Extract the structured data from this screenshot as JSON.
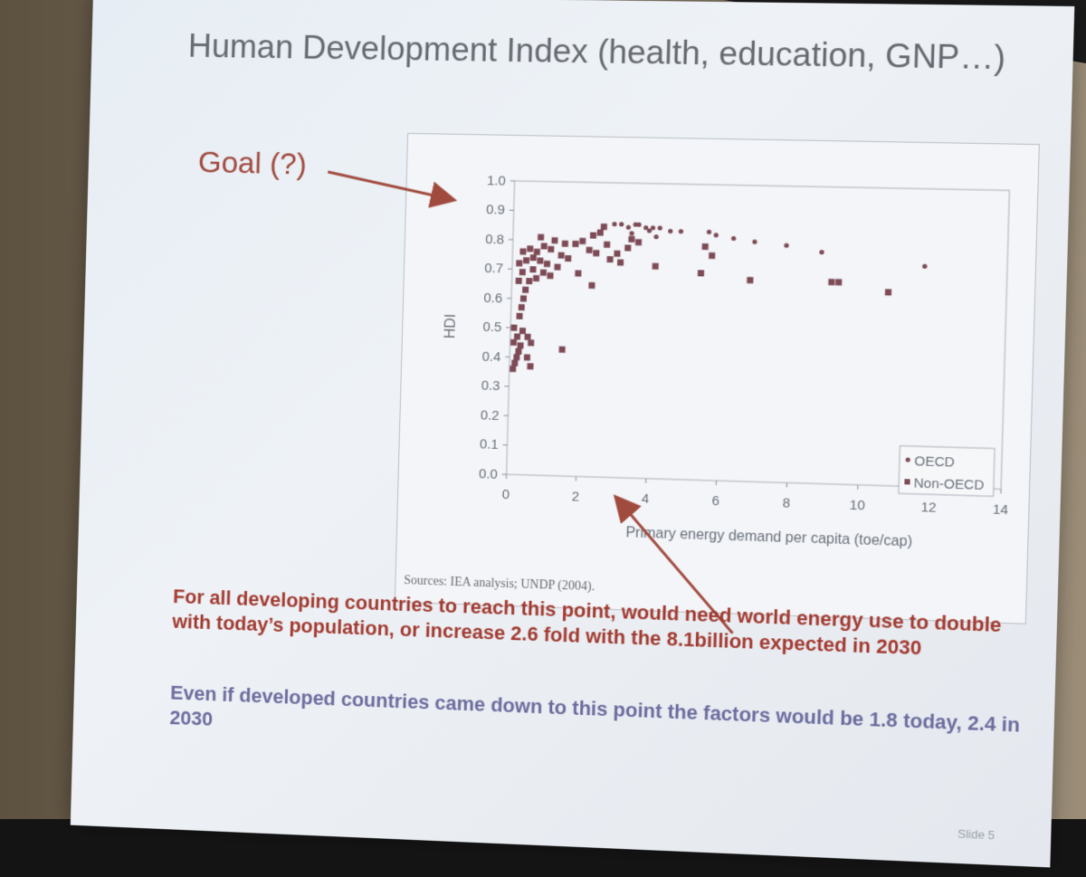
{
  "slide": {
    "title": "Human Development Index (health, education, GNP…)",
    "goal_label": "Goal (?)",
    "source_note": "Sources: IEA analysis; UNDP (2004).",
    "red_text": "For all developing countries to reach this point, would need world energy use to double with today’s population, or increase 2.6 fold with the 8.1billion expected in 2030",
    "blue_text": "Even if developed countries came down to this point the factors would be 1.8 today, 2.4 in 2030",
    "slide_number": "Slide 5"
  },
  "colors": {
    "marker": "#7d4a55",
    "arrow": "#a14a3e",
    "red_text": "#a23a30",
    "blue_text": "#6c6c9e"
  },
  "chart_data": {
    "type": "scatter",
    "title": "",
    "xlabel": "Primary energy demand per capita (toe/cap)",
    "ylabel": "HDI",
    "xlim": [
      0,
      14
    ],
    "ylim": [
      0.0,
      1.0
    ],
    "x_ticks": [
      "0",
      "2",
      "4",
      "6",
      "8",
      "10",
      "12",
      "14"
    ],
    "y_ticks": [
      "0.0",
      "0.1",
      "0.2",
      "0.3",
      "0.4",
      "0.5",
      "0.6",
      "0.7",
      "0.8",
      "0.9",
      "1.0"
    ],
    "legend_position": "bottom-right",
    "grid": false,
    "series": [
      {
        "name": "OECD",
        "marker": "dot",
        "points": [
          [
            2.9,
            0.86
          ],
          [
            3.1,
            0.86
          ],
          [
            3.3,
            0.85
          ],
          [
            3.5,
            0.86
          ],
          [
            3.6,
            0.86
          ],
          [
            3.8,
            0.85
          ],
          [
            3.9,
            0.84
          ],
          [
            4.0,
            0.85
          ],
          [
            4.2,
            0.85
          ],
          [
            4.5,
            0.84
          ],
          [
            4.8,
            0.84
          ],
          [
            5.6,
            0.84
          ],
          [
            5.8,
            0.83
          ],
          [
            6.3,
            0.82
          ],
          [
            6.9,
            0.81
          ],
          [
            7.8,
            0.8
          ],
          [
            8.8,
            0.78
          ],
          [
            11.7,
            0.74
          ],
          [
            3.4,
            0.83
          ],
          [
            4.1,
            0.82
          ]
        ]
      },
      {
        "name": "Non-OECD",
        "marker": "square",
        "points": [
          [
            0.1,
            0.36
          ],
          [
            0.15,
            0.38
          ],
          [
            0.2,
            0.4
          ],
          [
            0.25,
            0.42
          ],
          [
            0.1,
            0.45
          ],
          [
            0.2,
            0.47
          ],
          [
            0.3,
            0.44
          ],
          [
            0.1,
            0.5
          ],
          [
            0.35,
            0.49
          ],
          [
            0.5,
            0.47
          ],
          [
            0.6,
            0.45
          ],
          [
            0.5,
            0.4
          ],
          [
            0.6,
            0.37
          ],
          [
            0.25,
            0.54
          ],
          [
            0.3,
            0.57
          ],
          [
            0.35,
            0.6
          ],
          [
            0.4,
            0.63
          ],
          [
            0.2,
            0.66
          ],
          [
            0.5,
            0.66
          ],
          [
            0.7,
            0.67
          ],
          [
            0.3,
            0.69
          ],
          [
            0.6,
            0.7
          ],
          [
            0.9,
            0.69
          ],
          [
            1.1,
            0.68
          ],
          [
            0.2,
            0.72
          ],
          [
            0.4,
            0.73
          ],
          [
            0.6,
            0.74
          ],
          [
            0.8,
            0.73
          ],
          [
            1.0,
            0.72
          ],
          [
            1.3,
            0.71
          ],
          [
            0.3,
            0.76
          ],
          [
            0.5,
            0.77
          ],
          [
            0.7,
            0.76
          ],
          [
            0.9,
            0.78
          ],
          [
            1.1,
            0.77
          ],
          [
            1.4,
            0.75
          ],
          [
            1.6,
            0.74
          ],
          [
            0.8,
            0.81
          ],
          [
            1.2,
            0.8
          ],
          [
            1.5,
            0.79
          ],
          [
            1.8,
            0.79
          ],
          [
            2.0,
            0.8
          ],
          [
            2.3,
            0.82
          ],
          [
            2.5,
            0.83
          ],
          [
            2.6,
            0.85
          ],
          [
            2.7,
            0.79
          ],
          [
            3.0,
            0.76
          ],
          [
            2.2,
            0.77
          ],
          [
            2.4,
            0.76
          ],
          [
            2.8,
            0.74
          ],
          [
            3.3,
            0.78
          ],
          [
            3.4,
            0.81
          ],
          [
            3.6,
            0.8
          ],
          [
            3.1,
            0.73
          ],
          [
            4.1,
            0.72
          ],
          [
            5.5,
            0.79
          ],
          [
            5.7,
            0.76
          ],
          [
            5.4,
            0.7
          ],
          [
            6.8,
            0.68
          ],
          [
            9.1,
            0.68
          ],
          [
            9.3,
            0.68
          ],
          [
            10.7,
            0.65
          ],
          [
            1.9,
            0.69
          ],
          [
            2.3,
            0.65
          ],
          [
            1.5,
            0.43
          ]
        ]
      }
    ]
  }
}
